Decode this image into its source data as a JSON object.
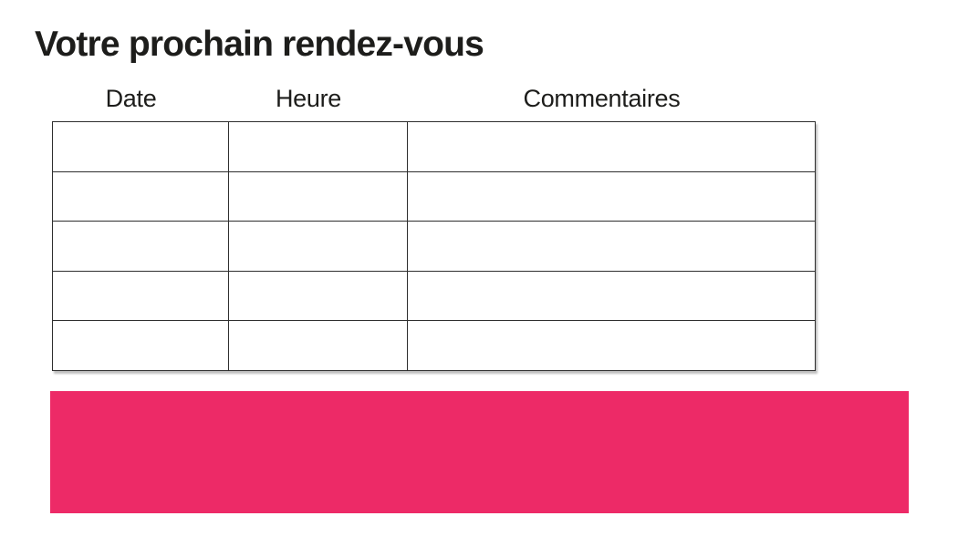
{
  "page": {
    "title": "Votre prochain rendez-vous",
    "background_color": "#ffffff",
    "text_color": "#1d1d1b"
  },
  "table": {
    "headers": [
      "Date",
      "Heure",
      "Commentaires"
    ],
    "border_color": "#2e2e2e",
    "rows": [
      [
        "",
        "",
        ""
      ],
      [
        "",
        "",
        ""
      ],
      [
        "",
        "",
        ""
      ],
      [
        "",
        "",
        ""
      ],
      [
        "",
        "",
        ""
      ]
    ]
  },
  "banner": {
    "text": "",
    "color": "#ED2A67"
  }
}
